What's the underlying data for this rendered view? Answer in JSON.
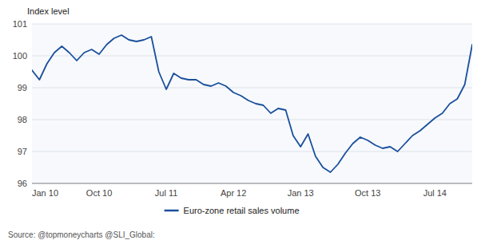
{
  "chart_data": {
    "type": "line",
    "y_label": "Index level",
    "annotations": [
      "Source: @topmoneycharts @SLI_Global:"
    ],
    "categories": [
      "Jan 10",
      null,
      null,
      null,
      null,
      null,
      null,
      null,
      null,
      "Oct 10",
      null,
      null,
      null,
      null,
      null,
      null,
      null,
      null,
      "Jul 11",
      null,
      null,
      null,
      null,
      null,
      null,
      null,
      null,
      "Apr 12",
      null,
      null,
      null,
      null,
      null,
      null,
      null,
      null,
      "Jan 13",
      null,
      null,
      null,
      null,
      null,
      null,
      null,
      null,
      "Oct 13",
      null,
      null,
      null,
      null,
      null,
      null,
      null,
      null,
      "Jul 14",
      null,
      null,
      null,
      null,
      null
    ],
    "series": [
      {
        "name": "Euro-zone retail sales volume",
        "color": "#1a4f9c",
        "values": [
          99.55,
          99.25,
          99.75,
          100.1,
          100.3,
          100.1,
          99.85,
          100.1,
          100.2,
          100.05,
          100.35,
          100.55,
          100.65,
          100.5,
          100.45,
          100.5,
          100.6,
          99.5,
          98.95,
          99.45,
          99.3,
          99.25,
          99.25,
          99.1,
          99.05,
          99.15,
          99.05,
          98.85,
          98.75,
          98.6,
          98.5,
          98.45,
          98.2,
          98.35,
          98.3,
          97.5,
          97.15,
          97.55,
          96.85,
          96.5,
          96.35,
          96.6,
          96.95,
          97.25,
          97.45,
          97.35,
          97.2,
          97.1,
          97.15,
          97.0,
          97.25,
          97.5,
          97.65,
          97.85,
          98.05,
          98.2,
          98.5,
          98.65,
          99.1,
          100.35
        ]
      }
    ],
    "ylim": [
      96,
      101
    ],
    "yticks": [
      96,
      97,
      98,
      99,
      100,
      101
    ],
    "grid": true,
    "legend": "bottom"
  }
}
